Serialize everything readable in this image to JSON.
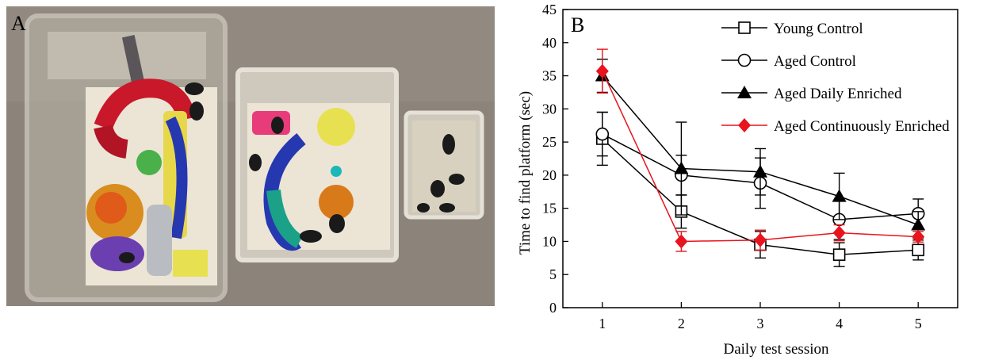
{
  "panel_a": {
    "label": "A",
    "colors": {
      "floor": "#8c847b",
      "bedding": "#ece5d6",
      "cage_frame": "#cfc9bd",
      "mouse": "#1a1a1a"
    }
  },
  "panel_b": {
    "label": "B"
  },
  "chart_data": {
    "type": "line",
    "xlabel": "Daily test session",
    "ylabel": "Time to find platform (sec)",
    "x": [
      1,
      2,
      3,
      4,
      5
    ],
    "xlim": [
      0.5,
      5.5
    ],
    "ylim": [
      0,
      45
    ],
    "yticks": [
      0,
      5,
      10,
      15,
      20,
      25,
      30,
      35,
      40,
      45
    ],
    "xticks": [
      1,
      2,
      3,
      4,
      5
    ],
    "grid": false,
    "legend_position": "top-right",
    "series": [
      {
        "name": "Young Control",
        "marker": "open-square",
        "color": "#000000",
        "values": [
          25.5,
          14.5,
          9.5,
          8.0,
          8.7
        ],
        "error": [
          4.0,
          2.5,
          2.0,
          1.8,
          1.5
        ]
      },
      {
        "name": "Aged Control",
        "marker": "open-circle",
        "color": "#000000",
        "values": [
          26.2,
          20.0,
          18.8,
          13.3,
          14.2
        ],
        "error": [
          3.3,
          3.0,
          3.8,
          3.0,
          2.2
        ]
      },
      {
        "name": "Aged Daily Enriched",
        "marker": "filled-triangle",
        "color": "#000000",
        "values": [
          35.0,
          21.0,
          20.5,
          16.8,
          12.5
        ],
        "error": [
          2.5,
          7.0,
          3.5,
          3.5,
          2.0
        ]
      },
      {
        "name": "Aged Continuously Enriched",
        "marker": "filled-diamond",
        "color": "#e8141e",
        "values": [
          35.7,
          10.0,
          10.2,
          11.3,
          10.7
        ],
        "error": [
          3.3,
          1.5,
          1.5,
          1.2,
          0.8
        ]
      }
    ]
  }
}
